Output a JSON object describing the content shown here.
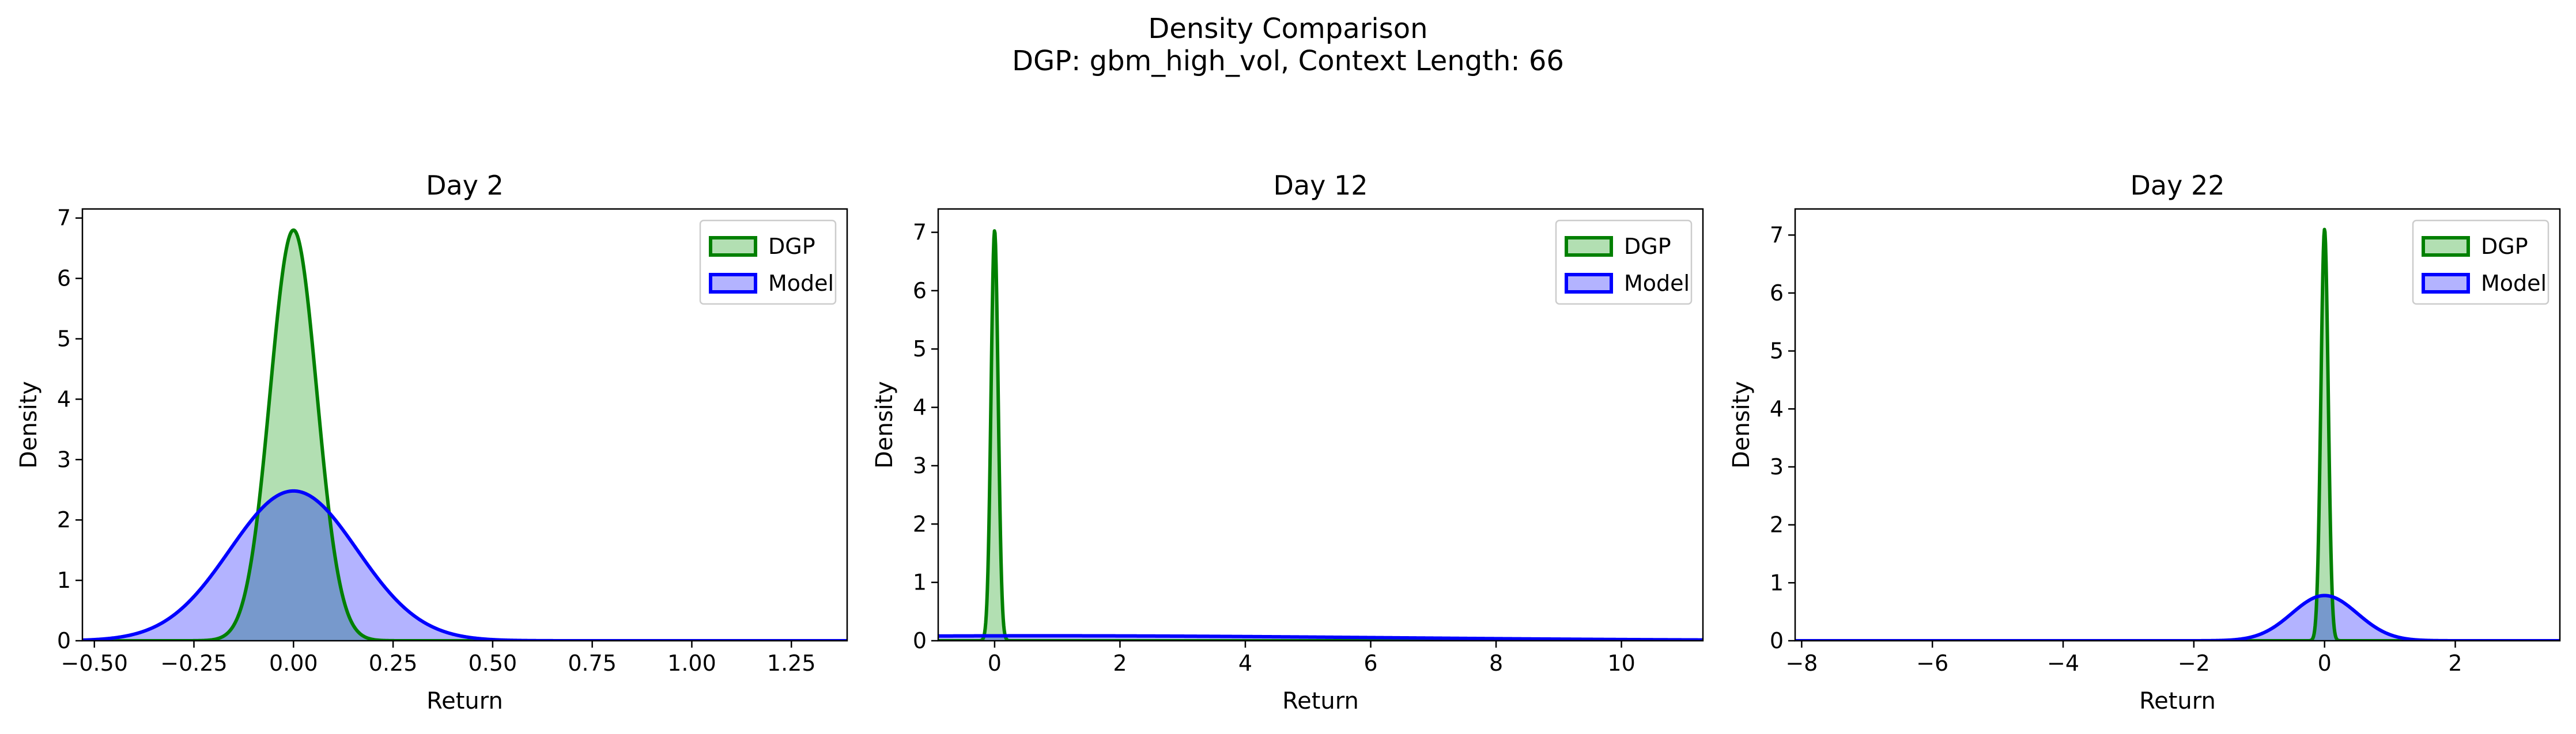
{
  "figure": {
    "title": "Density Comparison",
    "subtitle": "DGP: gbm_high_vol, Context Length: 66"
  },
  "colors": {
    "dgp_line": "#008000",
    "dgp_fill": "#b2dfb2",
    "model_line": "#0000ff",
    "model_fill": "#b3b3ff",
    "overlap_fill": "#7799cc"
  },
  "chart_data": [
    {
      "type": "area",
      "title": "Day 2",
      "xlabel": "Return",
      "ylabel": "Density",
      "xlim": [
        -0.53,
        1.39
      ],
      "ylim": [
        0,
        7.15
      ],
      "xticks": [
        -0.5,
        -0.25,
        0.0,
        0.25,
        0.5,
        0.75,
        1.0,
        1.25
      ],
      "xtick_labels": [
        "−0.50",
        "−0.25",
        "0.00",
        "0.25",
        "0.50",
        "0.75",
        "1.00",
        "1.25"
      ],
      "yticks": [
        0,
        1,
        2,
        3,
        4,
        5,
        6,
        7
      ],
      "ytick_labels": [
        "0",
        "1",
        "2",
        "3",
        "4",
        "5",
        "6",
        "7"
      ],
      "legend": "top-right",
      "series": [
        {
          "name": "DGP",
          "mean": 0.0,
          "std": 0.0586,
          "peak": 6.8
        },
        {
          "name": "Model",
          "mean": 0.0,
          "std": 0.16,
          "peak": 2.48
        }
      ]
    },
    {
      "type": "area",
      "title": "Day 12",
      "xlabel": "Return",
      "ylabel": "Density",
      "xlim": [
        -0.9,
        11.3
      ],
      "ylim": [
        0,
        7.4
      ],
      "xticks": [
        0,
        2,
        4,
        6,
        8,
        10
      ],
      "xtick_labels": [
        "0",
        "2",
        "4",
        "6",
        "8",
        "10"
      ],
      "yticks": [
        0,
        1,
        2,
        3,
        4,
        5,
        6,
        7
      ],
      "ytick_labels": [
        "0",
        "1",
        "2",
        "3",
        "4",
        "5",
        "6",
        "7"
      ],
      "legend": "top-right",
      "series": [
        {
          "name": "DGP",
          "mean": 0.0,
          "std": 0.0567,
          "peak": 7.03
        },
        {
          "name": "Model",
          "mean": 0.8,
          "std": 5.5,
          "peak": 0.085
        }
      ]
    },
    {
      "type": "area",
      "title": "Day 22",
      "xlabel": "Return",
      "ylabel": "Density",
      "xlim": [
        -8.1,
        3.6
      ],
      "ylim": [
        0,
        7.45
      ],
      "xticks": [
        -8,
        -6,
        -4,
        -2,
        0,
        2
      ],
      "xtick_labels": [
        "−8",
        "−6",
        "−4",
        "−2",
        "0",
        "2"
      ],
      "yticks": [
        0,
        1,
        2,
        3,
        4,
        5,
        6,
        7
      ],
      "ytick_labels": [
        "0",
        "1",
        "2",
        "3",
        "4",
        "5",
        "6",
        "7"
      ],
      "legend": "top-right",
      "series": [
        {
          "name": "DGP",
          "mean": 0.0,
          "std": 0.056,
          "peak": 7.1
        },
        {
          "name": "Model",
          "mean": 0.0,
          "std": 0.5,
          "peak": 0.78
        }
      ]
    }
  ]
}
